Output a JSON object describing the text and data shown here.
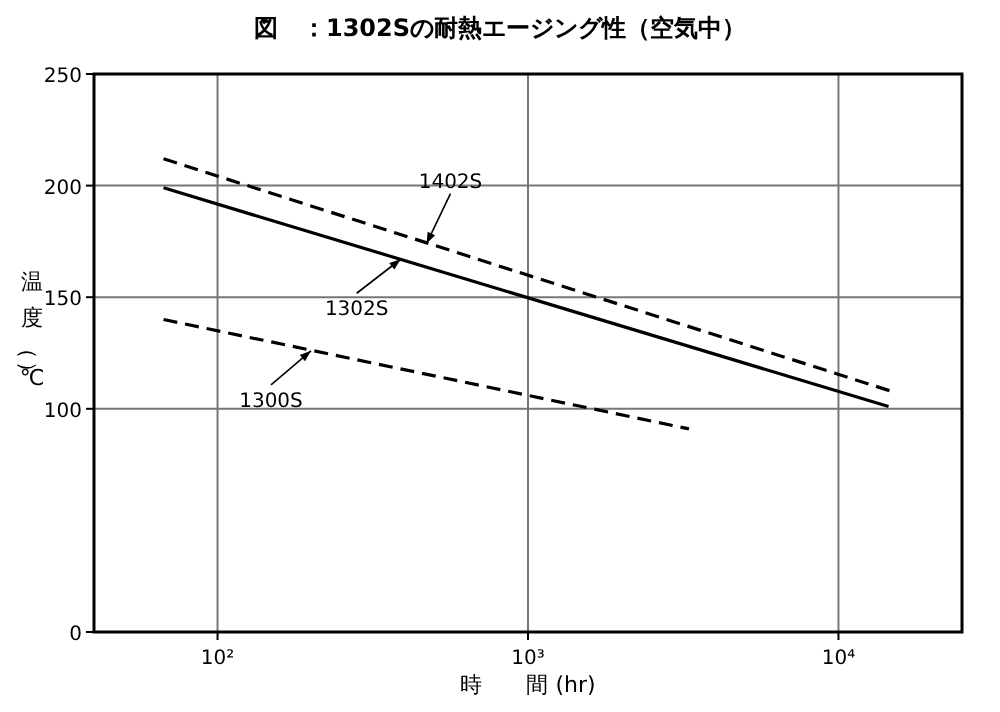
{
  "chart_data": {
    "type": "line",
    "title": "図　：1302Sの耐熱エージング性（空気中）",
    "xlabel": "時　　間 (hr)",
    "ylabel": "温度（℃）",
    "log": "x",
    "xlim": [
      40,
      25000
    ],
    "xticks": [
      {
        "value": 100,
        "label": "10²"
      },
      {
        "value": 1000,
        "label": "10³"
      },
      {
        "value": 10000,
        "label": "10⁴"
      }
    ],
    "ylim": [
      0,
      250
    ],
    "yticks": [
      0,
      100,
      150,
      200,
      250
    ],
    "grid": true,
    "marker": "none",
    "series": [
      {
        "color": "#000000",
        "line_style": "dashed",
        "x": [
          67,
          14700
        ],
        "values": [
          212,
          108
        ]
      },
      {
        "color": "#000000",
        "line_style": "solid",
        "x": [
          67,
          14500
        ],
        "values": [
          199,
          101
        ]
      },
      {
        "color": "#000000",
        "line_style": "dashed",
        "x": [
          67,
          3300
        ],
        "values": [
          140,
          91
        ]
      }
    ],
    "annotations": [
      {
        "text": "1402S",
        "x": 471,
        "y": 174
      },
      {
        "text": "1302S",
        "x": 389,
        "y": 167
      },
      {
        "text": "1300S",
        "x": 200,
        "y": 126
      }
    ]
  }
}
